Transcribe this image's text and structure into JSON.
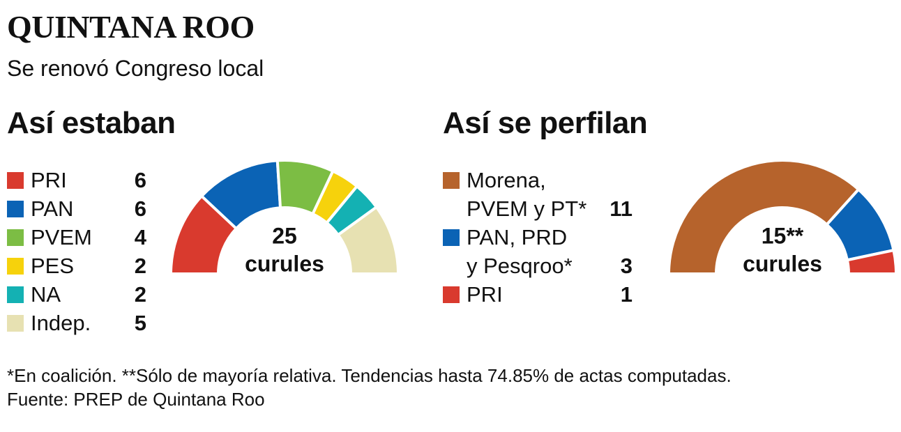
{
  "title": "QUINTANA ROO",
  "subtitle": "Se renovó Congreso local",
  "chart_data": [
    {
      "type": "half-donut",
      "title": "Así estaban",
      "categories": [
        "PRI",
        "PAN",
        "PVEM",
        "PES",
        "NA",
        "Indep."
      ],
      "values": [
        6,
        6,
        4,
        2,
        2,
        5
      ],
      "colors": [
        "#d93a2e",
        "#0b63b5",
        "#7cbd44",
        "#f6d20c",
        "#14b1b3",
        "#e7e1b2"
      ],
      "total": 25,
      "total_label": "curules"
    },
    {
      "type": "half-donut",
      "title": "Así se perfilan",
      "categories": [
        "Morena,\nPVEM y PT*",
        "PAN, PRD\ny Pesqroo*",
        "PRI"
      ],
      "values": [
        11,
        3,
        1
      ],
      "colors": [
        "#b6632c",
        "#0b63b5",
        "#d93a2e"
      ],
      "total": {
        "value": 15,
        "label": "15**"
      },
      "total_label": "curules"
    }
  ],
  "notes": [
    "*En coalición. **Sólo de mayoría relativa. Tendencias hasta 74.85% de actas computadas.",
    "Fuente: PREP de Quintana Roo"
  ]
}
